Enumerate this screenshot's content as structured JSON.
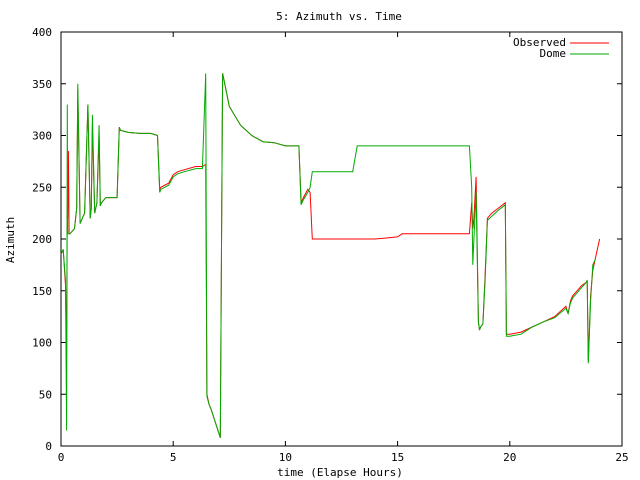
{
  "chart_data": {
    "type": "line",
    "title": "5: Azimuth vs. Time",
    "xlabel": "time (Elapse Hours)",
    "ylabel": "Azimuth",
    "xlim": [
      0,
      25
    ],
    "ylim": [
      0,
      400
    ],
    "xticks": [
      "0",
      "5",
      "10",
      "15",
      "20",
      "25"
    ],
    "yticks": [
      "0",
      "50",
      "100",
      "150",
      "200",
      "250",
      "300",
      "350",
      "400"
    ],
    "grid": false,
    "legend_position": "top-right",
    "series": [
      {
        "name": "Observed",
        "color": "#ff0000",
        "x": [
          0.0,
          0.1,
          0.2,
          0.25,
          0.28,
          0.3,
          0.33,
          0.36,
          0.4,
          0.6,
          0.7,
          0.75,
          0.85,
          0.95,
          1.05,
          1.2,
          1.3,
          1.35,
          1.4,
          1.5,
          1.6,
          1.7,
          1.75,
          1.8,
          2.0,
          2.5,
          2.6,
          2.65,
          3.0,
          3.5,
          4.0,
          4.3,
          4.4,
          4.45,
          4.8,
          5.0,
          5.2,
          5.5,
          6.0,
          6.3,
          6.45,
          6.5,
          6.55,
          6.6,
          6.7,
          7.1,
          7.2,
          7.25,
          7.5,
          8.0,
          8.5,
          9.0,
          9.5,
          10.0,
          10.5,
          10.6,
          10.7,
          10.8,
          11.0,
          11.1,
          11.2,
          11.3,
          11.5,
          12.0,
          13.0,
          14.0,
          15.0,
          15.2,
          15.4,
          16.0,
          17.0,
          18.0,
          18.2,
          18.3,
          18.35,
          18.4,
          18.5,
          18.6,
          18.65,
          18.7,
          18.8,
          18.9,
          19.0,
          19.2,
          19.5,
          19.8,
          19.85,
          19.9,
          20.0,
          20.5,
          21.0,
          21.5,
          22.0,
          22.5,
          22.6,
          22.7,
          22.8,
          23.0,
          23.2,
          23.4,
          23.45,
          23.5,
          23.6,
          23.7,
          23.8,
          24.0
        ],
        "y": [
          185,
          190,
          155,
          85,
          235,
          220,
          285,
          205,
          205,
          210,
          230,
          345,
          215,
          220,
          225,
          330,
          220,
          230,
          310,
          225,
          235,
          300,
          232,
          235,
          240,
          240,
          308,
          305,
          303,
          302,
          302,
          300,
          248,
          250,
          254,
          262,
          265,
          267,
          270,
          270,
          272,
          50,
          45,
          40,
          35,
          8,
          360,
          355,
          328,
          310,
          300,
          294,
          293,
          290,
          290,
          290,
          235,
          240,
          248,
          245,
          200,
          200,
          200,
          200,
          200,
          200,
          202,
          205,
          205,
          205,
          205,
          205,
          205,
          235,
          210,
          220,
          260,
          120,
          112,
          115,
          118,
          165,
          220,
          225,
          230,
          235,
          108,
          108,
          108,
          110,
          115,
          120,
          125,
          135,
          128,
          140,
          145,
          150,
          155,
          158,
          160,
          82,
          145,
          170,
          180,
          200
        ]
      },
      {
        "name": "Dome",
        "color": "#00aa00",
        "x": [
          0.0,
          0.1,
          0.2,
          0.25,
          0.28,
          0.3,
          0.33,
          0.36,
          0.4,
          0.6,
          0.7,
          0.75,
          0.85,
          0.95,
          1.05,
          1.2,
          1.3,
          1.35,
          1.4,
          1.5,
          1.6,
          1.7,
          1.75,
          1.8,
          2.0,
          2.5,
          2.6,
          2.65,
          3.0,
          3.5,
          4.0,
          4.3,
          4.4,
          4.45,
          4.8,
          5.0,
          5.2,
          5.5,
          6.0,
          6.3,
          6.45,
          6.5,
          6.55,
          6.6,
          6.7,
          7.1,
          7.2,
          7.25,
          7.5,
          8.0,
          8.5,
          9.0,
          9.5,
          10.0,
          10.5,
          10.6,
          10.7,
          10.8,
          11.0,
          11.1,
          11.2,
          11.3,
          11.5,
          12.0,
          13.0,
          13.2,
          13.4,
          14.0,
          15.0,
          16.0,
          17.0,
          18.0,
          18.2,
          18.3,
          18.35,
          18.4,
          18.5,
          18.6,
          18.65,
          18.7,
          18.8,
          18.9,
          19.0,
          19.2,
          19.5,
          19.8,
          19.85,
          19.9,
          20.0,
          20.5,
          21.0,
          21.5,
          22.0,
          22.5,
          22.6,
          22.7,
          22.8,
          23.0,
          23.2,
          23.4,
          23.45,
          23.5,
          23.6,
          23.7,
          23.8
        ],
        "y": [
          185,
          190,
          160,
          15,
          330,
          205,
          205,
          205,
          205,
          210,
          230,
          350,
          215,
          220,
          225,
          330,
          220,
          230,
          320,
          225,
          235,
          310,
          232,
          235,
          240,
          240,
          308,
          305,
          303,
          302,
          302,
          300,
          245,
          248,
          252,
          260,
          263,
          265,
          268,
          268,
          360,
          48,
          44,
          40,
          35,
          8,
          360,
          355,
          328,
          310,
          300,
          294,
          293,
          290,
          290,
          290,
          233,
          238,
          245,
          250,
          265,
          265,
          265,
          265,
          265,
          290,
          290,
          290,
          290,
          290,
          290,
          290,
          290,
          250,
          175,
          200,
          245,
          120,
          112,
          115,
          118,
          160,
          218,
          222,
          228,
          233,
          106,
          106,
          106,
          108,
          115,
          120,
          124,
          133,
          128,
          138,
          143,
          148,
          153,
          158,
          160,
          80,
          140,
          175,
          180
        ]
      }
    ]
  }
}
